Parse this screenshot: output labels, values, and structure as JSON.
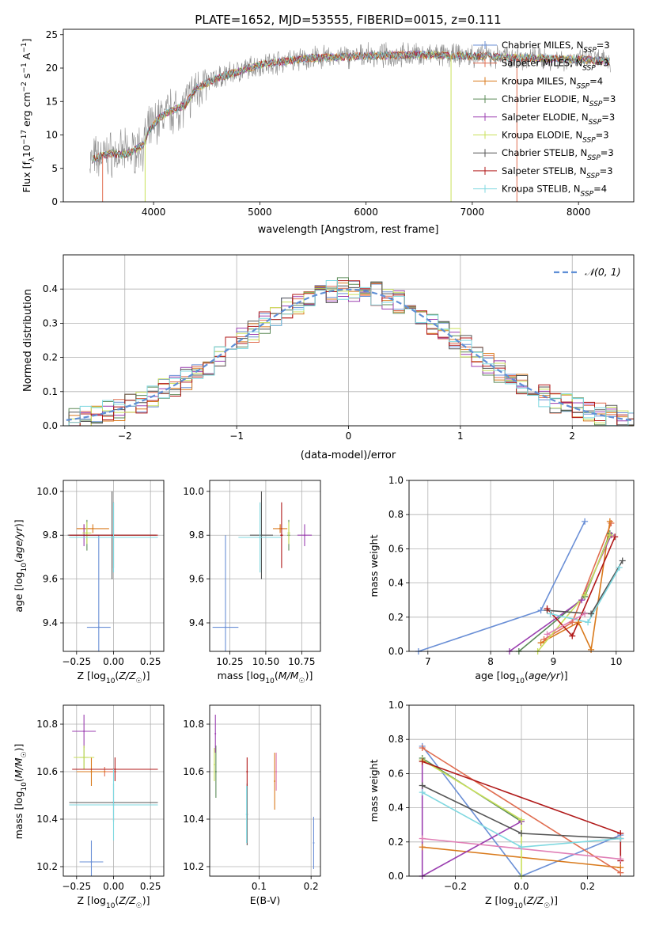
{
  "title": "PLATE=1652, MJD=53555, FIBERID=0015, z=0.111",
  "colors": {
    "Chabrier MILES": "#6a8fd6",
    "Salpeter MILES": "#e06d50",
    "Kroupa MILES": "#d97a1c",
    "Chabrier ELODIE": "#5b8a57",
    "Salpeter ELODIE": "#9b3fb0",
    "Kroupa ELODIE": "#c9e05a",
    "Chabrier STELIB": "#555555",
    "Salpeter STELIB": "#b01818",
    "Kroupa STELIB": "#7fd8e0",
    "pink": "#e07fb6",
    "gray": "#8c8c8c",
    "normal": "#5f8fd6"
  },
  "chart_data": [
    {
      "id": "spectrum",
      "type": "line",
      "xlabel": "wavelength [Angstrom, rest frame]",
      "ylabel": "Flux [f_λ10^-17 erg cm^-2 s^-1 A^-1]",
      "xlim": [
        3150,
        8520
      ],
      "ylim": [
        0,
        25.8
      ],
      "xticks": [
        "4000",
        "5000",
        "6000",
        "7000",
        "8000"
      ],
      "yticks": [
        "0",
        "5",
        "10",
        "15",
        "20",
        "25"
      ],
      "legend_position": "right",
      "legend": [
        {
          "name": "Chabrier MILES",
          "nssp": "3"
        },
        {
          "name": "Salpeter MILES",
          "nssp": "3"
        },
        {
          "name": "Kroupa MILES",
          "nssp": "4"
        },
        {
          "name": "Chabrier ELODIE",
          "nssp": "3"
        },
        {
          "name": "Salpeter ELODIE",
          "nssp": "3"
        },
        {
          "name": "Kroupa ELODIE",
          "nssp": "3"
        },
        {
          "name": "Chabrier STELIB",
          "nssp": "3"
        },
        {
          "name": "Salpeter STELIB",
          "nssp": "3"
        },
        {
          "name": "Kroupa STELIB",
          "nssp": "4"
        }
      ],
      "data_range": [
        3400,
        8300
      ],
      "profile": [
        [
          3400,
          6.2
        ],
        [
          3500,
          6.8
        ],
        [
          3600,
          7.2
        ],
        [
          3700,
          7.0
        ],
        [
          3800,
          7.5
        ],
        [
          3900,
          8.5
        ],
        [
          3950,
          10.5
        ],
        [
          4050,
          12.5
        ],
        [
          4150,
          13.5
        ],
        [
          4300,
          14.5
        ],
        [
          4400,
          17.0
        ],
        [
          4600,
          18.5
        ],
        [
          4800,
          19.5
        ],
        [
          5000,
          20.5
        ],
        [
          5200,
          21.0
        ],
        [
          5500,
          21.5
        ],
        [
          6000,
          21.8
        ],
        [
          6500,
          22.0
        ],
        [
          7000,
          21.8
        ],
        [
          7500,
          21.5
        ],
        [
          8000,
          21.3
        ],
        [
          8300,
          21.0
        ]
      ]
    },
    {
      "id": "residuals",
      "type": "bar",
      "xlabel": "(data-model)/error",
      "ylabel": "Normed distribution",
      "xlim": [
        -2.55,
        2.55
      ],
      "ylim": [
        0,
        0.5
      ],
      "xticks": [
        "−2",
        "−1",
        "0",
        "1",
        "2"
      ],
      "yticks": [
        "0.0",
        "0.1",
        "0.2",
        "0.3",
        "0.4"
      ],
      "legend": "𝒩(0, 1)",
      "legend_position": "top-right",
      "grid": true
    },
    {
      "id": "age-vs-z",
      "type": "scatter",
      "xlabel": "Z [log₁₀(Z/Z☉)]",
      "ylabel": "age  [log₁₀(age/yr)]",
      "xlim": [
        -0.34,
        0.34
      ],
      "ylim": [
        9.27,
        10.05
      ],
      "xticks": [
        "−0.25",
        "0.00",
        "0.25"
      ],
      "yticks": [
        "9.4",
        "9.6",
        "9.8",
        "10.0"
      ],
      "points": [
        {
          "model": "Chabrier MILES",
          "x": -0.1,
          "xerr": 0.08,
          "y": 9.38,
          "yerr": 0.42
        },
        {
          "model": "Salpeter MILES",
          "x": -0.2,
          "xerr": 0.05,
          "y": 9.83,
          "yerr": 0.02
        },
        {
          "model": "Kroupa MILES",
          "x": -0.14,
          "xerr": 0.11,
          "y": 9.83,
          "yerr": 0.02
        },
        {
          "model": "Chabrier ELODIE",
          "x": -0.18,
          "xerr": 0.02,
          "y": 9.8,
          "yerr": 0.07
        },
        {
          "model": "Salpeter ELODIE",
          "x": -0.2,
          "xerr": 0.1,
          "y": 9.8,
          "yerr": 0.05
        },
        {
          "model": "Kroupa ELODIE",
          "x": -0.18,
          "xerr": 0.03,
          "y": 9.81,
          "yerr": 0.05
        },
        {
          "model": "Chabrier STELIB",
          "x": -0.01,
          "xerr": 0.3,
          "y": 9.8,
          "yerr": 0.2
        },
        {
          "model": "Salpeter STELIB",
          "x": 0.0,
          "xerr": 0.3,
          "y": 9.8,
          "yerr": 0.15
        },
        {
          "model": "Kroupa STELIB",
          "x": 0.0,
          "xerr": 0.3,
          "y": 9.79,
          "yerr": 0.16
        }
      ]
    },
    {
      "id": "age-vs-mass",
      "type": "scatter",
      "xlabel": "mass [log₁₀(M/M☉)]",
      "ylabel": "",
      "xlim": [
        10.11,
        10.88
      ],
      "ylim": [
        9.27,
        10.05
      ],
      "xticks": [
        "10.25",
        "10.50",
        "10.75"
      ],
      "yticks": [
        "9.4",
        "9.6",
        "9.8",
        "10.0"
      ],
      "points": [
        {
          "model": "Chabrier MILES",
          "x": 10.22,
          "xerr": 0.09,
          "y": 9.38,
          "yerr": 0.42
        },
        {
          "model": "Salpeter MILES",
          "x": 10.6,
          "xerr": 0.01,
          "y": 9.83,
          "yerr": 0.02
        },
        {
          "model": "Kroupa MILES",
          "x": 10.6,
          "xerr": 0.05,
          "y": 9.83,
          "yerr": 0.02
        },
        {
          "model": "Chabrier ELODIE",
          "x": 10.66,
          "xerr": 0.01,
          "y": 9.8,
          "yerr": 0.07
        },
        {
          "model": "Salpeter ELODIE",
          "x": 10.77,
          "xerr": 0.05,
          "y": 9.8,
          "yerr": 0.05
        },
        {
          "model": "Kroupa ELODIE",
          "x": 10.66,
          "xerr": 0.01,
          "y": 9.81,
          "yerr": 0.05
        },
        {
          "model": "Chabrier STELIB",
          "x": 10.47,
          "xerr": 0.08,
          "y": 9.8,
          "yerr": 0.2
        },
        {
          "model": "Salpeter STELIB",
          "x": 10.61,
          "xerr": 0.01,
          "y": 9.8,
          "yerr": 0.15
        },
        {
          "model": "Kroupa STELIB",
          "x": 10.46,
          "xerr": 0.15,
          "y": 9.79,
          "yerr": 0.16
        }
      ]
    },
    {
      "id": "weight-vs-age",
      "type": "line",
      "xlabel": "age  [log₁₀(age/yr)]",
      "ylabel": "mass weight",
      "xlim": [
        6.7,
        10.28
      ],
      "ylim": [
        0,
        1.0
      ],
      "xticks": [
        "7",
        "8",
        "9",
        "10"
      ],
      "yticks": [
        "0.0",
        "0.2",
        "0.4",
        "0.6",
        "0.8",
        "1.0"
      ],
      "grid": true,
      "series": [
        {
          "model": "Chabrier MILES",
          "x": [
            6.85,
            8.8,
            9.5
          ],
          "y": [
            0.0,
            0.24,
            0.76
          ]
        },
        {
          "model": "Salpeter MILES",
          "x": [
            8.85,
            9.3,
            9.92
          ],
          "y": [
            0.07,
            0.17,
            0.75
          ]
        },
        {
          "model": "Kroupa MILES",
          "x": [
            8.8,
            9.4,
            9.6,
            9.9
          ],
          "y": [
            0.05,
            0.17,
            0.01,
            0.76
          ]
        },
        {
          "model": "Chabrier ELODIE",
          "x": [
            8.45,
            9.5,
            9.9
          ],
          "y": [
            0.0,
            0.32,
            0.69
          ]
        },
        {
          "model": "Salpeter ELODIE",
          "x": [
            8.3,
            9.45,
            9.92
          ],
          "y": [
            0.0,
            0.3,
            0.68
          ]
        },
        {
          "model": "Kroupa ELODIE",
          "x": [
            8.75,
            9.5,
            9.9
          ],
          "y": [
            0.0,
            0.33,
            0.68
          ]
        },
        {
          "model": "Chabrier STELIB",
          "x": [
            8.9,
            9.6,
            10.1
          ],
          "y": [
            0.24,
            0.22,
            0.53
          ]
        },
        {
          "model": "Salpeter STELIB",
          "x": [
            8.9,
            9.3,
            9.98
          ],
          "y": [
            0.25,
            0.09,
            0.67
          ]
        },
        {
          "model": "Kroupa STELIB",
          "x": [
            8.95,
            9.55,
            10.05
          ],
          "y": [
            0.22,
            0.17,
            0.49
          ]
        },
        {
          "model": "pink",
          "x": [
            8.9,
            9.5
          ],
          "y": [
            0.1,
            0.22
          ]
        }
      ]
    },
    {
      "id": "mass-vs-z",
      "type": "scatter",
      "xlabel": "Z [log₁₀(Z/Z☉)]",
      "ylabel": "mass [log₁₀(M/M☉)]",
      "xlim": [
        -0.34,
        0.34
      ],
      "ylim": [
        10.16,
        10.88
      ],
      "xticks": [
        "−0.25",
        "0.00",
        "0.25"
      ],
      "yticks": [
        "10.2",
        "10.4",
        "10.6",
        "10.8"
      ],
      "points": [
        {
          "model": "Chabrier MILES",
          "x": -0.15,
          "xerr": 0.08,
          "y": 10.22,
          "yerr": 0.09
        },
        {
          "model": "Salpeter MILES",
          "x": -0.06,
          "xerr": 0.08,
          "y": 10.6,
          "yerr": 0.02
        },
        {
          "model": "Kroupa MILES",
          "x": -0.15,
          "xerr": 0.1,
          "y": 10.6,
          "yerr": 0.06
        },
        {
          "model": "Chabrier ELODIE",
          "x": -0.2,
          "xerr": 0.03,
          "y": 10.66,
          "yerr": 0.05
        },
        {
          "model": "Salpeter ELODIE",
          "x": -0.2,
          "xerr": 0.08,
          "y": 10.77,
          "yerr": 0.07
        },
        {
          "model": "Kroupa ELODIE",
          "x": -0.2,
          "xerr": 0.07,
          "y": 10.66,
          "yerr": 0.05
        },
        {
          "model": "Chabrier STELIB",
          "x": 0.0,
          "xerr": 0.3,
          "y": 10.47,
          "yerr": 0.08
        },
        {
          "model": "Salpeter STELIB",
          "x": 0.01,
          "xerr": 0.29,
          "y": 10.61,
          "yerr": 0.05
        },
        {
          "model": "Kroupa STELIB",
          "x": 0.0,
          "xerr": 0.3,
          "y": 10.46,
          "yerr": 0.15
        }
      ]
    },
    {
      "id": "mass-vs-ebv",
      "type": "scatter",
      "xlabel": "E(B-V)",
      "ylabel": "",
      "xlim": [
        0.005,
        0.218
      ],
      "ylim": [
        10.16,
        10.88
      ],
      "xticks": [
        "0.1",
        "0.2"
      ],
      "yticks": [
        "10.2",
        "10.4",
        "10.6",
        "10.8"
      ],
      "points": [
        {
          "model": "Chabrier MILES",
          "x": 0.205,
          "y": 10.3,
          "yerr": 0.11
        },
        {
          "model": "Kroupa MILES",
          "x": 0.13,
          "y": 10.56,
          "yerr": 0.12
        },
        {
          "model": "pink",
          "x": 0.133,
          "y": 10.6,
          "yerr": 0.08
        },
        {
          "model": "Chabrier ELODIE",
          "x": 0.017,
          "y": 10.6,
          "yerr": 0.11
        },
        {
          "model": "Salpeter ELODIE",
          "x": 0.016,
          "y": 10.76,
          "yerr": 0.08
        },
        {
          "model": "Kroupa ELODIE",
          "x": 0.014,
          "y": 10.63,
          "yerr": 0.07
        },
        {
          "model": "Chabrier STELIB",
          "x": 0.077,
          "y": 10.42,
          "yerr": 0.13
        },
        {
          "model": "Salpeter STELIB",
          "x": 0.077,
          "y": 10.6,
          "yerr": 0.06
        },
        {
          "model": "Kroupa STELIB",
          "x": 0.076,
          "y": 10.42,
          "yerr": 0.12
        }
      ]
    },
    {
      "id": "weight-vs-z",
      "type": "line",
      "xlabel": "Z [log₁₀(Z/Z☉)]",
      "ylabel": "mass weight",
      "xlim": [
        -0.34,
        0.34
      ],
      "ylim": [
        0,
        1.0
      ],
      "xticks": [
        "−0.2",
        "0.0",
        "0.2"
      ],
      "yticks": [
        "0.0",
        "0.2",
        "0.4",
        "0.6",
        "0.8",
        "1.0"
      ],
      "grid": true,
      "series": [
        {
          "model": "Chabrier MILES",
          "x": [
            -0.3,
            0.0,
            0.3
          ],
          "y": [
            0.76,
            0.0,
            0.24
          ]
        },
        {
          "model": "Kroupa MILES",
          "x": [
            -0.3,
            0.3
          ],
          "y": [
            0.17,
            0.05
          ]
        },
        {
          "model": "Salpeter MILES",
          "x": [
            -0.3,
            0.3
          ],
          "y": [
            0.75,
            0.02
          ]
        },
        {
          "model": "Chabrier ELODIE",
          "x": [
            -0.3,
            0.0
          ],
          "y": [
            0.69,
            0.32
          ]
        },
        {
          "model": "Salpeter ELODIE",
          "x": [
            -0.3,
            -0.3,
            0.0
          ],
          "y": [
            0.68,
            0.0,
            0.32
          ]
        },
        {
          "model": "Kroupa ELODIE",
          "x": [
            -0.3,
            0.0,
            0.0
          ],
          "y": [
            0.68,
            0.33,
            0.0
          ]
        },
        {
          "model": "Chabrier STELIB",
          "x": [
            -0.3,
            0.0,
            0.3
          ],
          "y": [
            0.53,
            0.25,
            0.22
          ]
        },
        {
          "model": "Salpeter STELIB",
          "x": [
            -0.3,
            0.3,
            0.3
          ],
          "y": [
            0.67,
            0.25,
            0.09
          ]
        },
        {
          "model": "Kroupa STELIB",
          "x": [
            -0.3,
            0.0,
            0.3
          ],
          "y": [
            0.49,
            0.17,
            0.22
          ]
        },
        {
          "model": "pink",
          "x": [
            -0.3,
            0.3
          ],
          "y": [
            0.22,
            0.1
          ]
        }
      ]
    }
  ]
}
